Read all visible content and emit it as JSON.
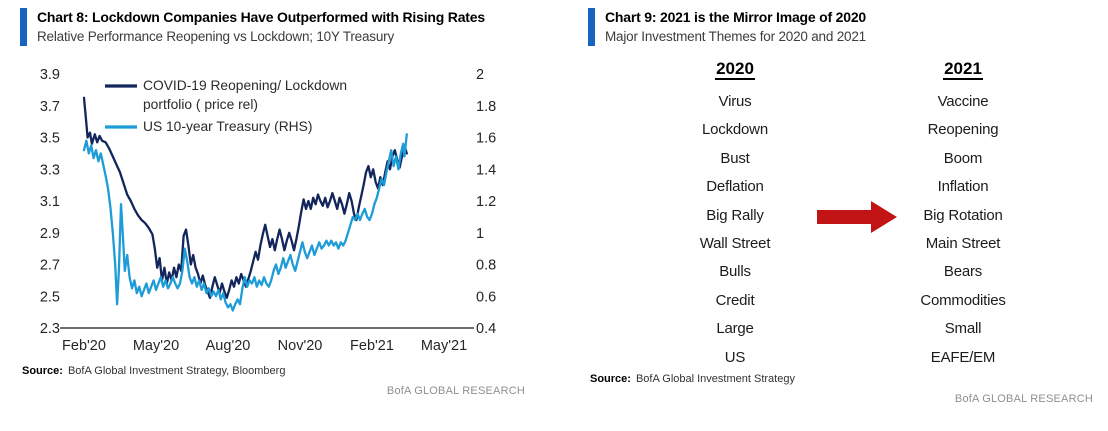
{
  "page": {
    "accent_color": "#1565C0"
  },
  "left_panel": {
    "title": "Chart 8: Lockdown Companies Have Outperformed with Rising Rates",
    "subtitle": "Relative Performance Reopening vs Lockdown; 10Y Treasury",
    "source_label": "Source:",
    "source": "BofA Global Investment Strategy, Bloomberg",
    "research_tag": "BofA GLOBAL RESEARCH"
  },
  "right_panel": {
    "title": "Chart 9: 2021 is the Mirror Image of 2020",
    "subtitle": "Major Investment Themes for 2020 and 2021",
    "source_label": "Source:",
    "source": "BofA Global Investment Strategy",
    "research_tag": "BofA GLOBAL RESEARCH",
    "arrow": {
      "icon": "right-arrow-icon",
      "color": "#C21414"
    },
    "arrow_row_index": 4,
    "columns": [
      {
        "header": "2020",
        "items": [
          "Virus",
          "Lockdown",
          "Bust",
          "Deflation",
          "Big Rally",
          "Wall Street",
          "Bulls",
          "Credit",
          "Large",
          "US"
        ]
      },
      {
        "header": "2021",
        "items": [
          "Vaccine",
          "Reopening",
          "Boom",
          "Inflation",
          "Big Rotation",
          "Main Street",
          "Bears",
          "Commodities",
          "Small",
          "EAFE/EM"
        ]
      }
    ]
  },
  "chart_data": {
    "type": "line",
    "x_axis": {
      "labels": [
        "Feb'20",
        "May'20",
        "Aug'20",
        "Nov'20",
        "Feb'21",
        "May'21"
      ],
      "range_months": [
        0,
        15
      ]
    },
    "y_left": {
      "tick_labels": [
        "3.9",
        "3.7",
        "3.5",
        "3.3",
        "3.1",
        "2.9",
        "2.7",
        "2.5",
        "2.3"
      ],
      "range": [
        2.3,
        3.9
      ]
    },
    "y_right": {
      "tick_labels": [
        "2",
        "1.8",
        "1.6",
        "1.4",
        "1.2",
        "1",
        "0.8",
        "0.6",
        "0.4"
      ],
      "range": [
        0.4,
        2.0
      ]
    },
    "grid": false,
    "legend_position": "top-left",
    "legend": [
      {
        "color": "#12265B",
        "lines": [
          "COVID-19 Reopening/ Lockdown",
          "portfolio ( price rel)"
        ]
      },
      {
        "color": "#1E9CD7",
        "lines": [
          "US 10-year Treasury (RHS)"
        ]
      }
    ],
    "series": [
      {
        "name": "COVID-19 Reopening/ Lockdown portfolio ( price rel)",
        "axis": "left",
        "color": "#12265B",
        "points": [
          [
            0,
            3.75
          ],
          [
            0.08,
            3.62
          ],
          [
            0.15,
            3.5
          ],
          [
            0.25,
            3.53
          ],
          [
            0.33,
            3.46
          ],
          [
            0.45,
            3.52
          ],
          [
            0.55,
            3.47
          ],
          [
            0.65,
            3.51
          ],
          [
            0.75,
            3.48
          ],
          [
            0.9,
            3.47
          ],
          [
            1.05,
            3.43
          ],
          [
            1.2,
            3.38
          ],
          [
            1.35,
            3.33
          ],
          [
            1.5,
            3.28
          ],
          [
            1.65,
            3.21
          ],
          [
            1.8,
            3.14
          ],
          [
            1.95,
            3.1
          ],
          [
            2.1,
            3.05
          ],
          [
            2.25,
            3.01
          ],
          [
            2.4,
            2.98
          ],
          [
            2.55,
            2.96
          ],
          [
            2.7,
            2.93
          ],
          [
            2.85,
            2.89
          ],
          [
            2.95,
            2.8
          ],
          [
            3.05,
            2.68
          ],
          [
            3.15,
            2.74
          ],
          [
            3.25,
            2.6
          ],
          [
            3.35,
            2.68
          ],
          [
            3.45,
            2.58
          ],
          [
            3.55,
            2.65
          ],
          [
            3.65,
            2.6
          ],
          [
            3.75,
            2.68
          ],
          [
            3.85,
            2.62
          ],
          [
            3.95,
            2.7
          ],
          [
            4.05,
            2.66
          ],
          [
            4.15,
            2.88
          ],
          [
            4.25,
            2.92
          ],
          [
            4.35,
            2.82
          ],
          [
            4.45,
            2.7
          ],
          [
            4.55,
            2.76
          ],
          [
            4.65,
            2.68
          ],
          [
            4.75,
            2.64
          ],
          [
            4.85,
            2.58
          ],
          [
            4.95,
            2.63
          ],
          [
            5.05,
            2.57
          ],
          [
            5.15,
            2.53
          ],
          [
            5.25,
            2.49
          ],
          [
            5.35,
            2.56
          ],
          [
            5.45,
            2.62
          ],
          [
            5.55,
            2.57
          ],
          [
            5.65,
            2.52
          ],
          [
            5.75,
            2.58
          ],
          [
            5.85,
            2.53
          ],
          [
            5.95,
            2.49
          ],
          [
            6.05,
            2.54
          ],
          [
            6.15,
            2.6
          ],
          [
            6.25,
            2.56
          ],
          [
            6.35,
            2.62
          ],
          [
            6.45,
            2.58
          ],
          [
            6.55,
            2.64
          ],
          [
            6.65,
            2.6
          ],
          [
            6.75,
            2.56
          ],
          [
            6.85,
            2.61
          ],
          [
            6.95,
            2.66
          ],
          [
            7.05,
            2.72
          ],
          [
            7.15,
            2.78
          ],
          [
            7.25,
            2.73
          ],
          [
            7.35,
            2.82
          ],
          [
            7.45,
            2.89
          ],
          [
            7.55,
            2.95
          ],
          [
            7.65,
            2.88
          ],
          [
            7.75,
            2.81
          ],
          [
            7.85,
            2.86
          ],
          [
            7.95,
            2.79
          ],
          [
            8.05,
            2.86
          ],
          [
            8.15,
            2.92
          ],
          [
            8.25,
            2.86
          ],
          [
            8.35,
            2.79
          ],
          [
            8.45,
            2.85
          ],
          [
            8.55,
            2.9
          ],
          [
            8.65,
            2.85
          ],
          [
            8.75,
            2.79
          ],
          [
            8.85,
            2.86
          ],
          [
            8.95,
            2.94
          ],
          [
            9.05,
            3.03
          ],
          [
            9.15,
            3.11
          ],
          [
            9.25,
            3.05
          ],
          [
            9.35,
            3.1
          ],
          [
            9.45,
            3.05
          ],
          [
            9.55,
            3.12
          ],
          [
            9.65,
            3.08
          ],
          [
            9.75,
            3.14
          ],
          [
            9.85,
            3.1
          ],
          [
            9.95,
            3.07
          ],
          [
            10.05,
            3.12
          ],
          [
            10.15,
            3.06
          ],
          [
            10.25,
            3.1
          ],
          [
            10.35,
            3.15
          ],
          [
            10.45,
            3.1
          ],
          [
            10.55,
            3.05
          ],
          [
            10.65,
            3.12
          ],
          [
            10.75,
            3.08
          ],
          [
            10.85,
            3.02
          ],
          [
            10.95,
            3.08
          ],
          [
            11.05,
            3.15
          ],
          [
            11.15,
            3.1
          ],
          [
            11.25,
            3.02
          ],
          [
            11.35,
            2.98
          ],
          [
            11.45,
            3.06
          ],
          [
            11.55,
            3.13
          ],
          [
            11.65,
            3.2
          ],
          [
            11.75,
            3.28
          ],
          [
            11.85,
            3.32
          ],
          [
            11.95,
            3.25
          ],
          [
            12.05,
            3.3
          ],
          [
            12.15,
            3.22
          ],
          [
            12.25,
            3.18
          ],
          [
            12.35,
            3.25
          ],
          [
            12.45,
            3.2
          ],
          [
            12.55,
            3.28
          ],
          [
            12.65,
            3.35
          ],
          [
            12.75,
            3.3
          ],
          [
            12.85,
            3.38
          ],
          [
            12.95,
            3.42
          ],
          [
            13.05,
            3.36
          ],
          [
            13.15,
            3.31
          ],
          [
            13.25,
            3.38
          ],
          [
            13.35,
            3.45
          ],
          [
            13.45,
            3.4
          ]
        ]
      },
      {
        "name": "US 10-year Treasury (RHS)",
        "axis": "right",
        "color": "#1E9CD7",
        "points": [
          [
            0,
            1.52
          ],
          [
            0.1,
            1.58
          ],
          [
            0.2,
            1.5
          ],
          [
            0.3,
            1.55
          ],
          [
            0.4,
            1.47
          ],
          [
            0.5,
            1.52
          ],
          [
            0.6,
            1.45
          ],
          [
            0.7,
            1.5
          ],
          [
            0.8,
            1.43
          ],
          [
            0.9,
            1.36
          ],
          [
            1.0,
            1.28
          ],
          [
            1.1,
            1.16
          ],
          [
            1.2,
            1.0
          ],
          [
            1.3,
            0.8
          ],
          [
            1.38,
            0.55
          ],
          [
            1.46,
            0.78
          ],
          [
            1.54,
            1.18
          ],
          [
            1.62,
            0.98
          ],
          [
            1.7,
            0.76
          ],
          [
            1.8,
            0.86
          ],
          [
            1.9,
            0.72
          ],
          [
            2.0,
            0.65
          ],
          [
            2.1,
            0.7
          ],
          [
            2.2,
            0.62
          ],
          [
            2.3,
            0.66
          ],
          [
            2.4,
            0.6
          ],
          [
            2.5,
            0.64
          ],
          [
            2.6,
            0.68
          ],
          [
            2.7,
            0.62
          ],
          [
            2.8,
            0.66
          ],
          [
            2.9,
            0.7
          ],
          [
            3.0,
            0.64
          ],
          [
            3.1,
            0.68
          ],
          [
            3.2,
            0.72
          ],
          [
            3.3,
            0.66
          ],
          [
            3.4,
            0.7
          ],
          [
            3.5,
            0.65
          ],
          [
            3.6,
            0.68
          ],
          [
            3.7,
            0.72
          ],
          [
            3.8,
            0.68
          ],
          [
            3.9,
            0.65
          ],
          [
            4.0,
            0.68
          ],
          [
            4.1,
            0.76
          ],
          [
            4.2,
            0.9
          ],
          [
            4.3,
            0.82
          ],
          [
            4.4,
            0.72
          ],
          [
            4.5,
            0.68
          ],
          [
            4.6,
            0.72
          ],
          [
            4.7,
            0.66
          ],
          [
            4.8,
            0.7
          ],
          [
            4.9,
            0.64
          ],
          [
            5.0,
            0.68
          ],
          [
            5.1,
            0.62
          ],
          [
            5.2,
            0.65
          ],
          [
            5.3,
            0.6
          ],
          [
            5.4,
            0.63
          ],
          [
            5.5,
            0.6
          ],
          [
            5.6,
            0.64
          ],
          [
            5.7,
            0.58
          ],
          [
            5.8,
            0.62
          ],
          [
            5.9,
            0.56
          ],
          [
            6.0,
            0.53
          ],
          [
            6.1,
            0.55
          ],
          [
            6.2,
            0.51
          ],
          [
            6.3,
            0.55
          ],
          [
            6.4,
            0.58
          ],
          [
            6.5,
            0.55
          ],
          [
            6.6,
            0.65
          ],
          [
            6.7,
            0.72
          ],
          [
            6.8,
            0.66
          ],
          [
            6.9,
            0.7
          ],
          [
            7.0,
            0.68
          ],
          [
            7.1,
            0.72
          ],
          [
            7.2,
            0.66
          ],
          [
            7.3,
            0.7
          ],
          [
            7.4,
            0.67
          ],
          [
            7.5,
            0.72
          ],
          [
            7.6,
            0.68
          ],
          [
            7.7,
            0.66
          ],
          [
            7.8,
            0.7
          ],
          [
            7.9,
            0.76
          ],
          [
            8.0,
            0.8
          ],
          [
            8.1,
            0.74
          ],
          [
            8.2,
            0.78
          ],
          [
            8.3,
            0.84
          ],
          [
            8.4,
            0.78
          ],
          [
            8.5,
            0.82
          ],
          [
            8.6,
            0.86
          ],
          [
            8.7,
            0.8
          ],
          [
            8.8,
            0.76
          ],
          [
            8.9,
            0.82
          ],
          [
            9.0,
            0.88
          ],
          [
            9.1,
            0.94
          ],
          [
            9.2,
            0.88
          ],
          [
            9.3,
            0.84
          ],
          [
            9.4,
            0.88
          ],
          [
            9.5,
            0.92
          ],
          [
            9.6,
            0.86
          ],
          [
            9.7,
            0.9
          ],
          [
            9.8,
            0.94
          ],
          [
            9.9,
            0.9
          ],
          [
            10.0,
            0.92
          ],
          [
            10.1,
            0.95
          ],
          [
            10.2,
            0.92
          ],
          [
            10.3,
            0.95
          ],
          [
            10.4,
            0.92
          ],
          [
            10.5,
            0.94
          ],
          [
            10.6,
            0.9
          ],
          [
            10.7,
            0.94
          ],
          [
            10.8,
            0.92
          ],
          [
            10.9,
            0.95
          ],
          [
            11.0,
            1.0
          ],
          [
            11.1,
            1.05
          ],
          [
            11.2,
            1.1
          ],
          [
            11.3,
            1.08
          ],
          [
            11.4,
            1.12
          ],
          [
            11.5,
            1.08
          ],
          [
            11.6,
            1.12
          ],
          [
            11.7,
            1.15
          ],
          [
            11.8,
            1.1
          ],
          [
            11.9,
            1.08
          ],
          [
            12.0,
            1.12
          ],
          [
            12.1,
            1.18
          ],
          [
            12.2,
            1.22
          ],
          [
            12.3,
            1.28
          ],
          [
            12.4,
            1.34
          ],
          [
            12.5,
            1.3
          ],
          [
            12.6,
            1.38
          ],
          [
            12.7,
            1.45
          ],
          [
            12.8,
            1.52
          ],
          [
            12.9,
            1.42
          ],
          [
            13.0,
            1.48
          ],
          [
            13.1,
            1.4
          ],
          [
            13.2,
            1.5
          ],
          [
            13.3,
            1.56
          ],
          [
            13.35,
            1.48
          ],
          [
            13.45,
            1.62
          ]
        ]
      }
    ]
  }
}
